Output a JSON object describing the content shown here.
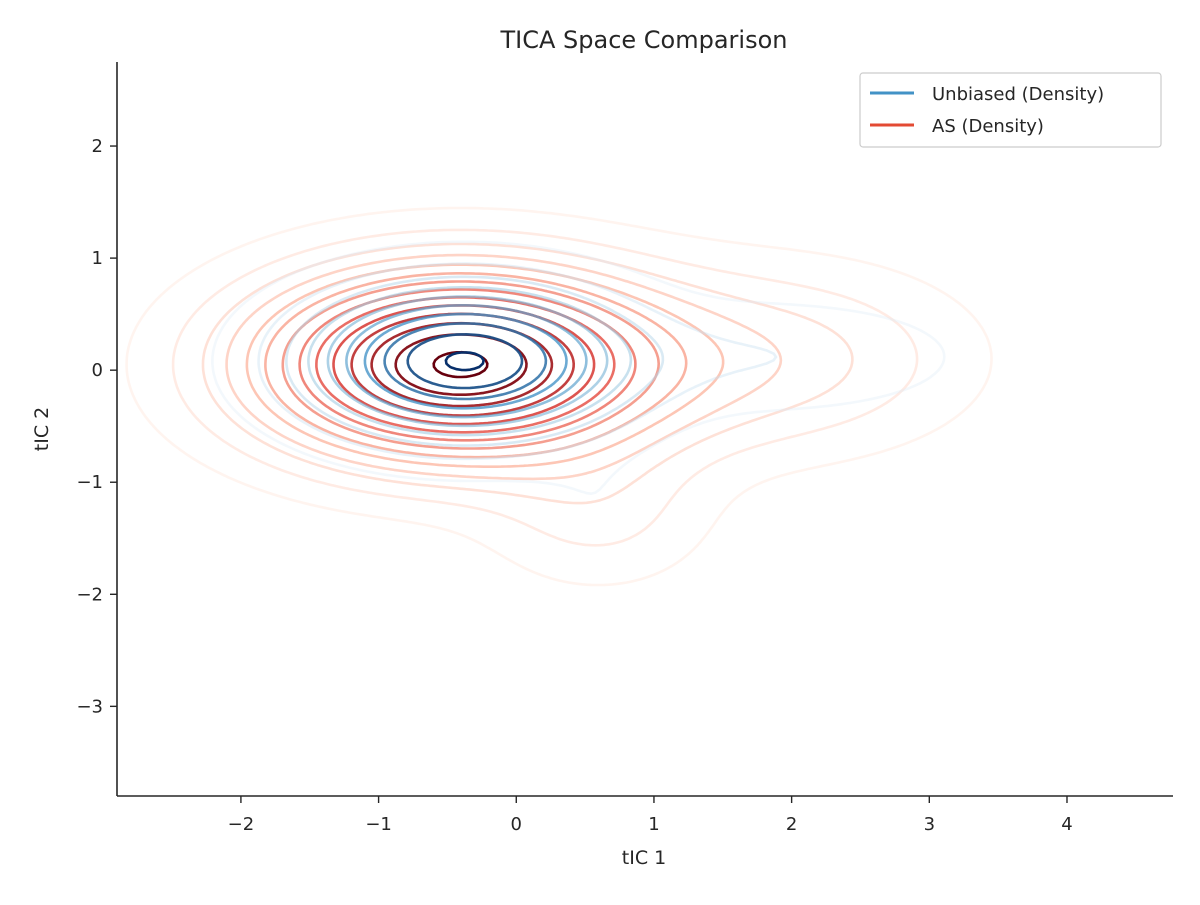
{
  "chart_data": {
    "type": "contour",
    "title": "TICA Space Comparison",
    "xlabel": "tIC 1",
    "ylabel": "tIC 2",
    "xlim": [
      -2.9,
      4.77
    ],
    "ylim": [
      -3.8,
      2.75
    ],
    "xticks": [
      -2,
      -1,
      0,
      1,
      2,
      3,
      4
    ],
    "yticks": [
      -3,
      -2,
      -1,
      0,
      1,
      2
    ],
    "grid": false,
    "legend_position": "top-right",
    "series": [
      {
        "name": "Unbiased (Density)",
        "legend_color": "#4292c6",
        "colormap": "Blues",
        "levels": 10,
        "components": [
          {
            "weight": 1.0,
            "mean": [
              -0.38,
              0.08
            ],
            "sd": [
              0.72,
              0.42
            ]
          },
          {
            "weight": 0.11,
            "mean": [
              1.9,
              0.12
            ],
            "sd": [
              0.85,
              0.32
            ]
          },
          {
            "weight": 0.035,
            "mean": [
              0.6,
              -1.25
            ],
            "sd": [
              0.35,
              0.35
            ]
          }
        ]
      },
      {
        "name": "AS (Density)",
        "legend_color": "#e34a33",
        "colormap": "Reds",
        "levels": 14,
        "components": [
          {
            "weight": 1.0,
            "mean": [
              -0.42,
              0.05
            ],
            "sd": [
              0.95,
              0.55
            ]
          },
          {
            "weight": 0.16,
            "mean": [
              1.95,
              0.1
            ],
            "sd": [
              0.9,
              0.55
            ]
          },
          {
            "weight": 0.1,
            "mean": [
              0.6,
              -1.3
            ],
            "sd": [
              0.55,
              0.45
            ]
          }
        ]
      }
    ]
  }
}
